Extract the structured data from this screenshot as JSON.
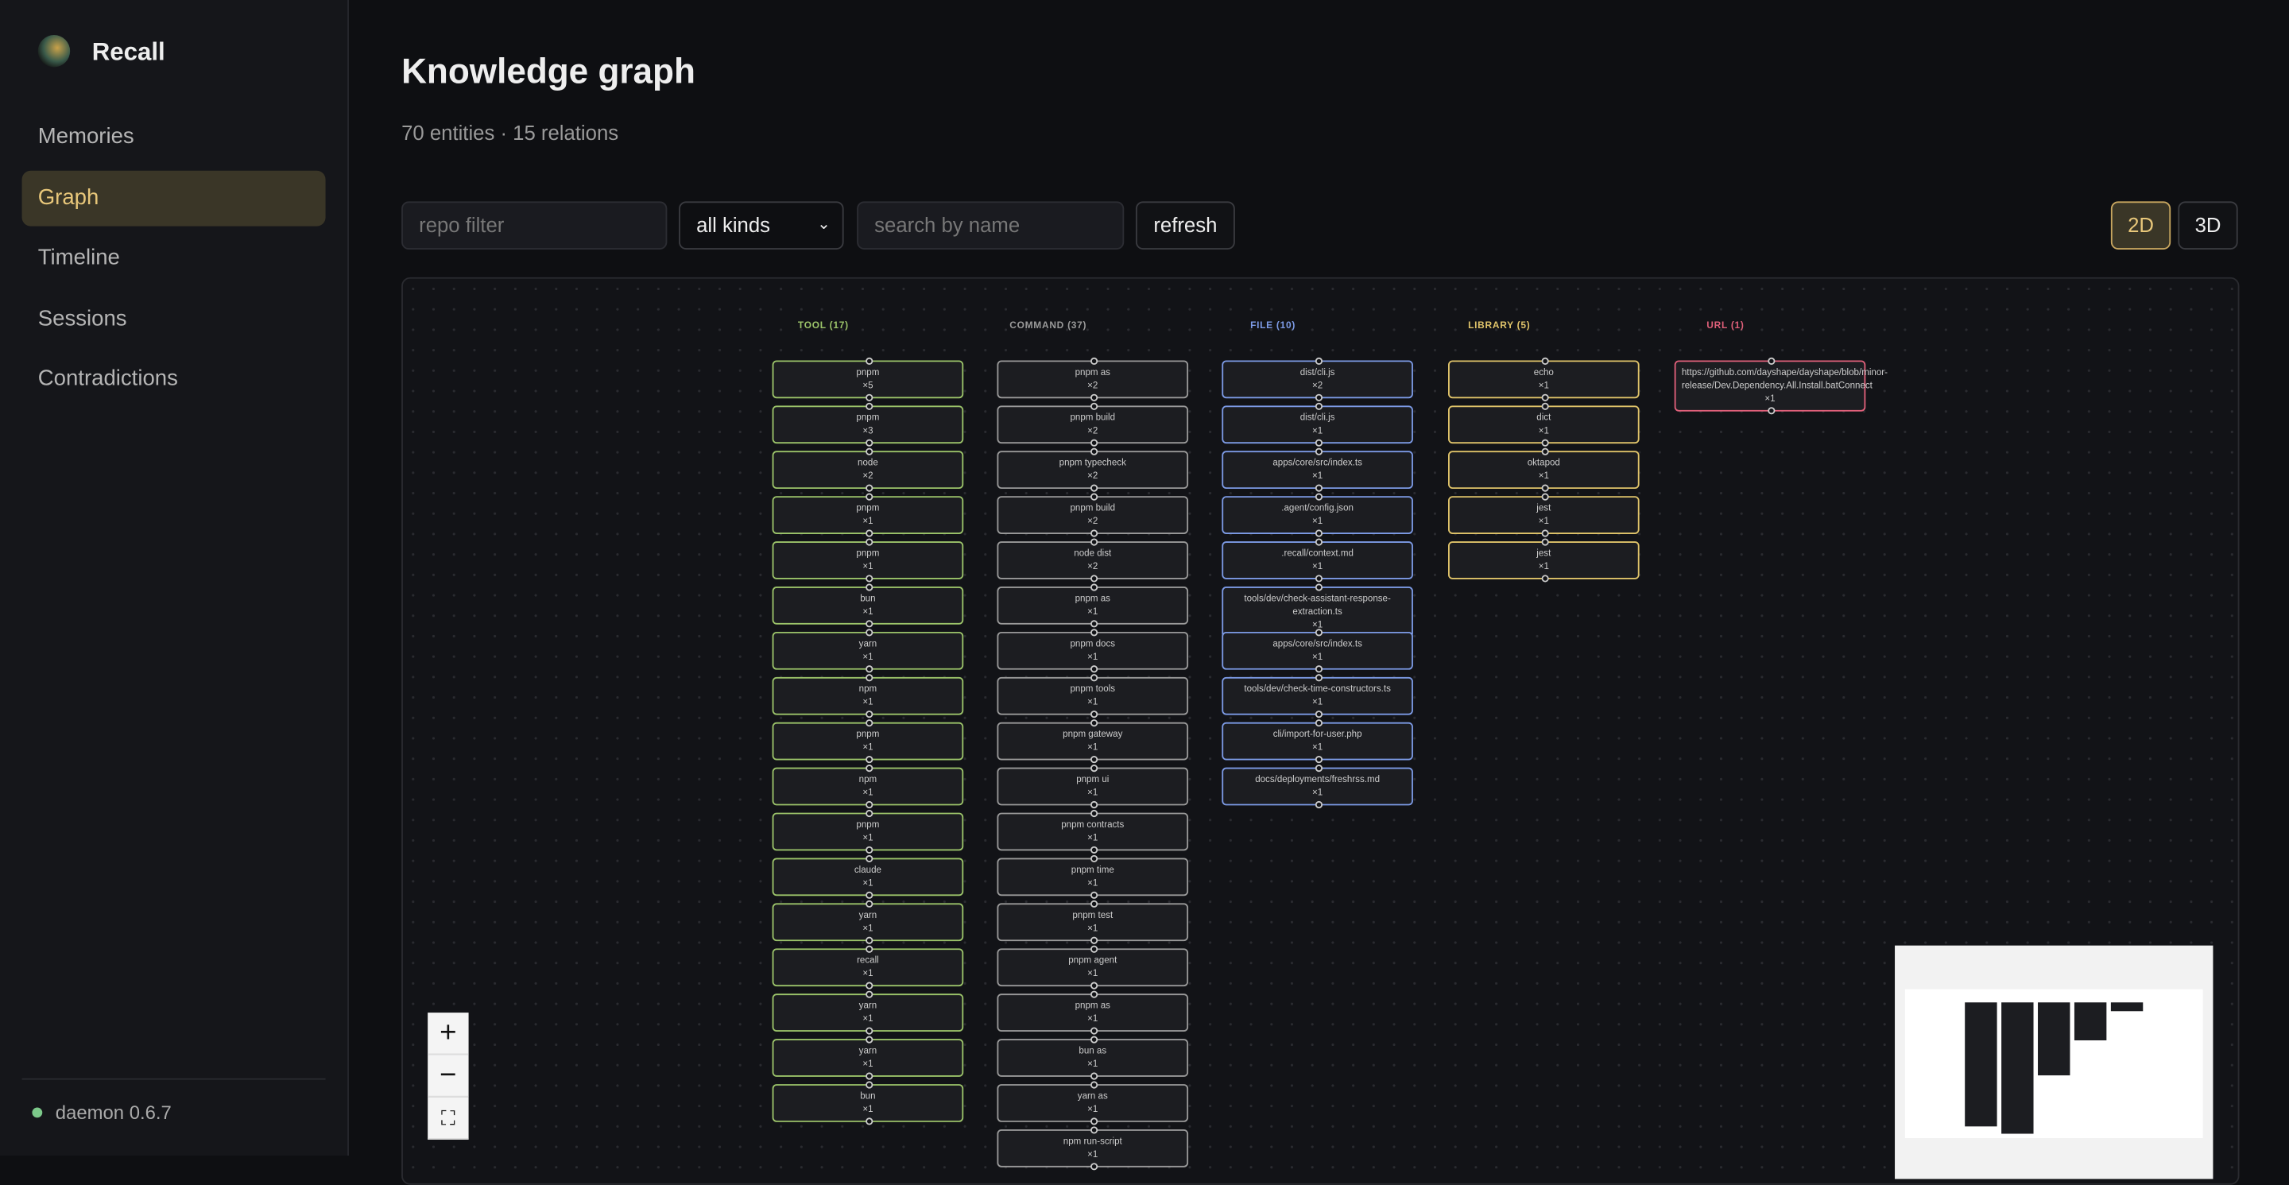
{
  "app": {
    "name": "Recall"
  },
  "nav": [
    "Memories",
    "Graph",
    "Timeline",
    "Sessions",
    "Contradictions"
  ],
  "status": "daemon 0.6.7",
  "header": {
    "title": "Knowledge graph",
    "subtitle": "70 entities · 15 relations"
  },
  "filters": {
    "repo_placeholder": "repo filter",
    "kind": "all kinds",
    "search_placeholder": "search by name",
    "refresh": "refresh",
    "view_2d": "2D",
    "view_3d": "3D"
  },
  "graph": {
    "columns": [
      {
        "label": "TOOL (17)",
        "color": "#9cc46a",
        "nodes": [
          {
            "name": "pnpm",
            "count": "×5"
          },
          {
            "name": "pnpm",
            "count": "×3"
          },
          {
            "name": "node",
            "count": "×2"
          },
          {
            "name": "pnpm",
            "count": "×1"
          },
          {
            "name": "pnpm",
            "count": "×1"
          },
          {
            "name": "bun",
            "count": "×1"
          },
          {
            "name": "yarn",
            "count": "×1"
          },
          {
            "name": "npm",
            "count": "×1"
          },
          {
            "name": "pnpm",
            "count": "×1"
          },
          {
            "name": "npm",
            "count": "×1"
          },
          {
            "name": "pnpm",
            "count": "×1"
          },
          {
            "name": "claude",
            "count": "×1"
          },
          {
            "name": "yarn",
            "count": "×1"
          },
          {
            "name": "recall",
            "count": "×1"
          },
          {
            "name": "yarn",
            "count": "×1"
          },
          {
            "name": "yarn",
            "count": "×1"
          },
          {
            "name": "bun",
            "count": "×1"
          }
        ]
      },
      {
        "label": "COMMAND (37)",
        "color": "#9a9a9a",
        "nodes": [
          {
            "name": "pnpm as",
            "count": "×2"
          },
          {
            "name": "pnpm build",
            "count": "×2"
          },
          {
            "name": "pnpm typecheck",
            "count": "×2"
          },
          {
            "name": "pnpm build",
            "count": "×2"
          },
          {
            "name": "node dist",
            "count": "×2"
          },
          {
            "name": "pnpm as",
            "count": "×1"
          },
          {
            "name": "pnpm docs",
            "count": "×1"
          },
          {
            "name": "pnpm tools",
            "count": "×1"
          },
          {
            "name": "pnpm gateway",
            "count": "×1"
          },
          {
            "name": "pnpm ui",
            "count": "×1"
          },
          {
            "name": "pnpm contracts",
            "count": "×1"
          },
          {
            "name": "pnpm time",
            "count": "×1"
          },
          {
            "name": "pnpm test",
            "count": "×1"
          },
          {
            "name": "pnpm agent",
            "count": "×1"
          },
          {
            "name": "pnpm as",
            "count": "×1"
          },
          {
            "name": "bun as",
            "count": "×1"
          },
          {
            "name": "yarn as",
            "count": "×1"
          },
          {
            "name": "npm run-script",
            "count": "×1"
          }
        ]
      },
      {
        "label": "FILE (10)",
        "color": "#7d9be6",
        "nodes": [
          {
            "name": "dist/cli.js",
            "count": "×2"
          },
          {
            "name": "dist/cli.js",
            "count": "×1"
          },
          {
            "name": "apps/core/src/index.ts",
            "count": "×1"
          },
          {
            "name": ".agent/config.json",
            "count": "×1"
          },
          {
            "name": ".recall/context.md",
            "count": "×1"
          },
          {
            "name": "tools/dev/check-assistant-response-extraction.ts",
            "count": "×1"
          },
          {
            "name": "apps/core/src/index.ts",
            "count": "×1"
          },
          {
            "name": "tools/dev/check-time-constructors.ts",
            "count": "×1"
          },
          {
            "name": "cli/import-for-user.php",
            "count": "×1"
          },
          {
            "name": "docs/deployments/freshrss.md",
            "count": "×1"
          }
        ]
      },
      {
        "label": "LIBRARY (5)",
        "color": "#e0c46a",
        "nodes": [
          {
            "name": "echo",
            "count": "×1"
          },
          {
            "name": "dict",
            "count": "×1"
          },
          {
            "name": "oktapod",
            "count": "×1"
          },
          {
            "name": "jest",
            "count": "×1"
          },
          {
            "name": "jest",
            "count": "×1"
          }
        ]
      },
      {
        "label": "URL (1)",
        "color": "#e0607a",
        "nodes": [
          {
            "name": "https://github.com/dayshape/dayshape/blob/minor-release/Dev.Dependency.All.Install.batConnect",
            "count": "×1"
          }
        ]
      }
    ]
  }
}
